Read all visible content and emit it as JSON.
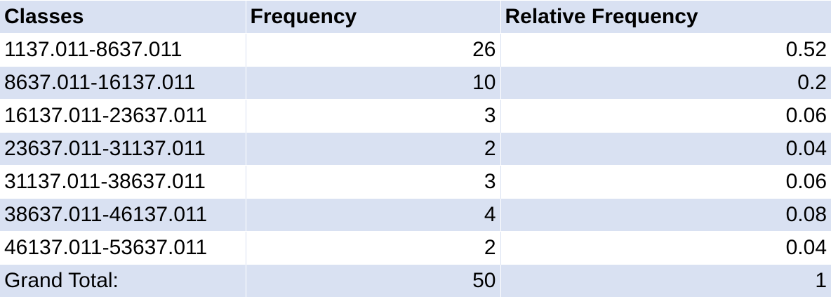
{
  "table": {
    "headers": [
      "Classes",
      "Frequency",
      "Relative Frequency"
    ],
    "rows": [
      {
        "classes": "1137.011-8637.011",
        "frequency": "26",
        "relative_frequency": "0.52"
      },
      {
        "classes": "8637.011-16137.011",
        "frequency": "10",
        "relative_frequency": "0.2"
      },
      {
        "classes": "16137.011-23637.011",
        "frequency": "3",
        "relative_frequency": "0.06"
      },
      {
        "classes": "23637.011-31137.011",
        "frequency": "2",
        "relative_frequency": "0.04"
      },
      {
        "classes": "31137.011-38637.011",
        "frequency": "3",
        "relative_frequency": "0.06"
      },
      {
        "classes": "38637.011-46137.011",
        "frequency": "4",
        "relative_frequency": "0.08"
      },
      {
        "classes": "46137.011-53637.011",
        "frequency": "2",
        "relative_frequency": "0.04"
      }
    ],
    "total": {
      "label": "Grand Total:",
      "frequency": "50",
      "relative_frequency": "1"
    }
  },
  "colors": {
    "band": "#d9e1f2",
    "background": "#ffffff",
    "text": "#000000"
  }
}
